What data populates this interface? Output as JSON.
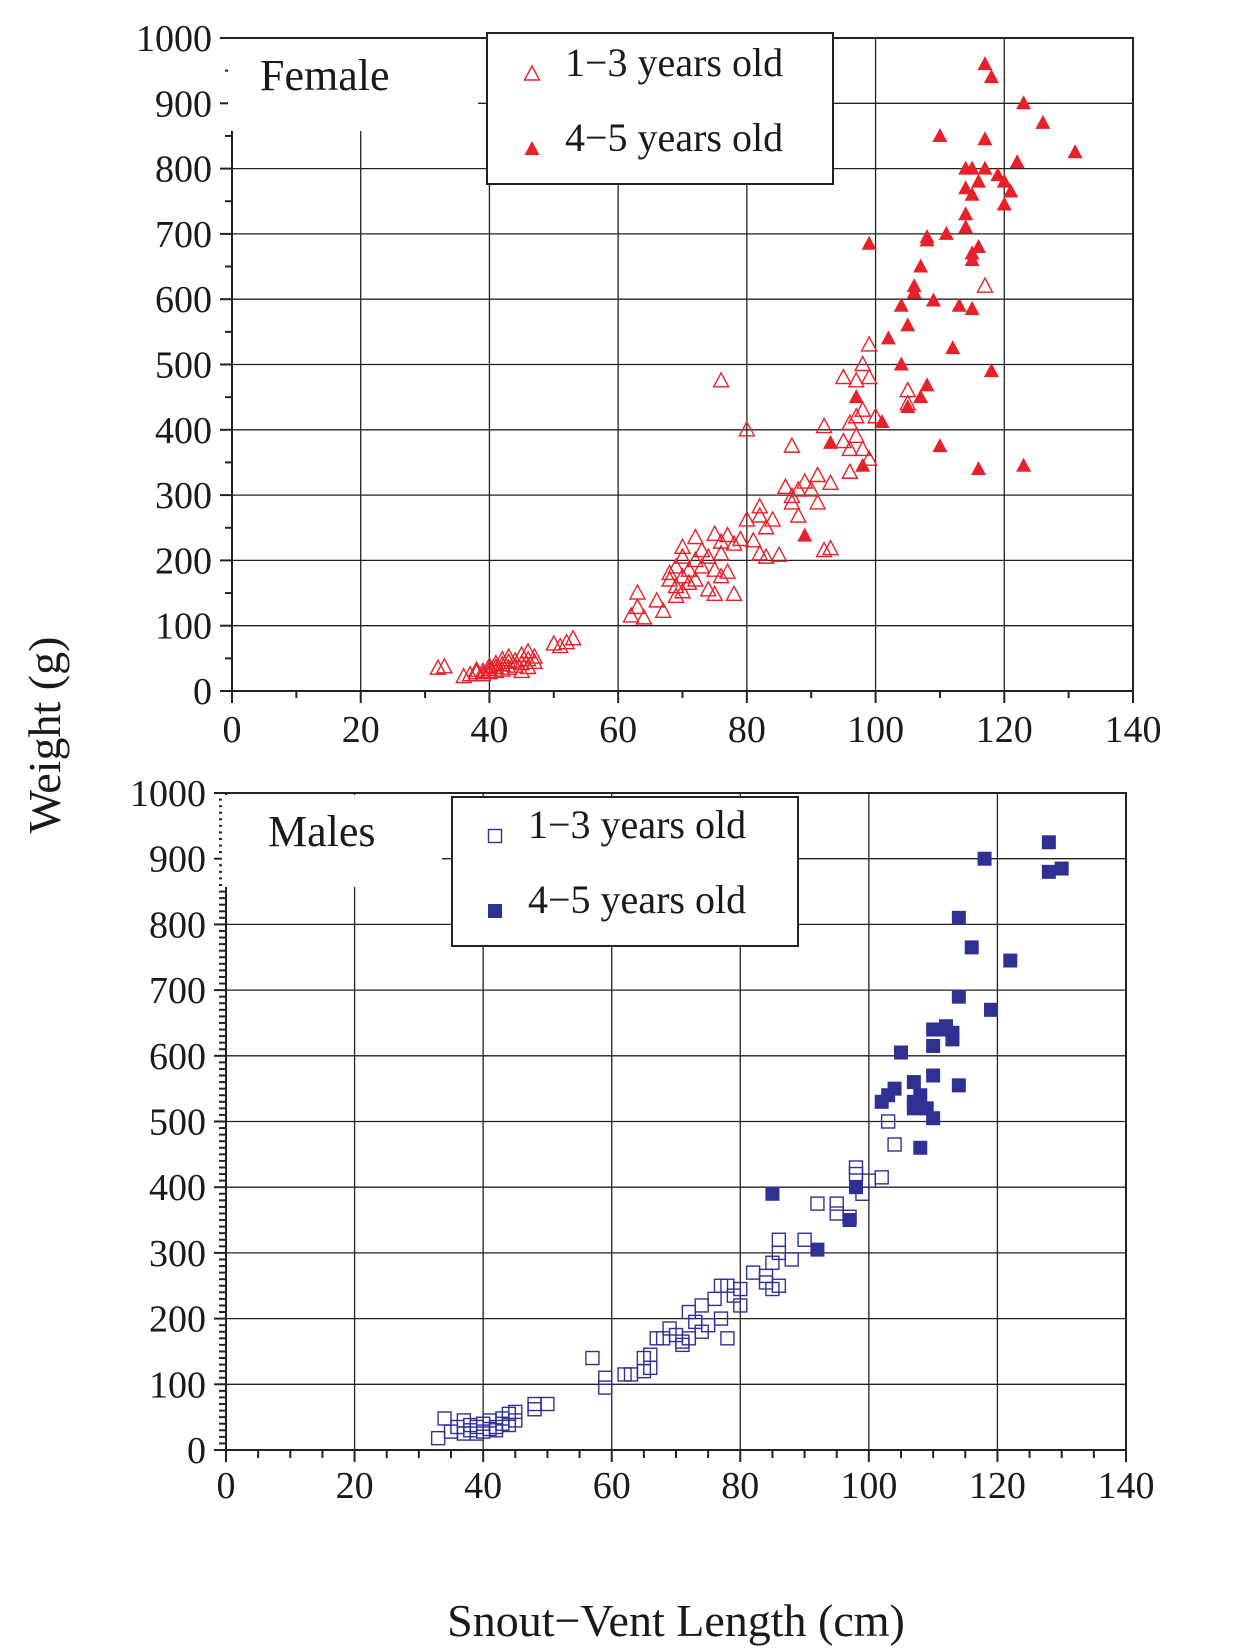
{
  "ylabel": "Weight (g)",
  "xlabel": "Snout−Vent Length (cm)",
  "chart_data": [
    {
      "type": "scatter",
      "panel_label": "Female",
      "xlim": [
        0,
        140
      ],
      "ylim": [
        0,
        1000
      ],
      "x_ticks": [
        "0",
        "20",
        "40",
        "60",
        "80",
        "100",
        "120",
        "140"
      ],
      "y_ticks": [
        "0",
        "100",
        "200",
        "300",
        "400",
        "500",
        "600",
        "700",
        "800",
        "900",
        "1000"
      ],
      "grid": true,
      "legend_position": "top-center",
      "series": [
        {
          "name": "1−3 years old",
          "marker": "open-triangle",
          "color": "#e8202a",
          "points": [
            [
              32,
              35
            ],
            [
              33,
              37
            ],
            [
              36,
              22
            ],
            [
              37,
              25
            ],
            [
              38,
              28
            ],
            [
              38,
              32
            ],
            [
              39,
              25
            ],
            [
              39,
              30
            ],
            [
              40,
              28
            ],
            [
              40,
              33
            ],
            [
              40,
              38
            ],
            [
              41,
              30
            ],
            [
              41,
              36
            ],
            [
              41,
              42
            ],
            [
              42,
              32
            ],
            [
              42,
              40
            ],
            [
              42,
              48
            ],
            [
              43,
              35
            ],
            [
              43,
              44
            ],
            [
              43,
              52
            ],
            [
              44,
              38
            ],
            [
              44,
              46
            ],
            [
              45,
              30
            ],
            [
              45,
              42
            ],
            [
              45,
              55
            ],
            [
              46,
              36
            ],
            [
              46,
              48
            ],
            [
              46,
              60
            ],
            [
              47,
              44
            ],
            [
              47,
              52
            ],
            [
              50,
              72
            ],
            [
              51,
              68
            ],
            [
              52,
              74
            ],
            [
              53,
              80
            ],
            [
              62,
              115
            ],
            [
              63,
              128
            ],
            [
              63,
              150
            ],
            [
              64,
              112
            ],
            [
              66,
              138
            ],
            [
              67,
              122
            ],
            [
              68,
              170
            ],
            [
              68,
              180
            ],
            [
              69,
              145
            ],
            [
              69,
              160
            ],
            [
              69,
              190
            ],
            [
              70,
              152
            ],
            [
              70,
              175
            ],
            [
              70,
              205
            ],
            [
              70,
              220
            ],
            [
              71,
              165
            ],
            [
              71,
              185
            ],
            [
              72,
              170
            ],
            [
              72,
              200
            ],
            [
              72,
              235
            ],
            [
              73,
              190
            ],
            [
              73,
              215
            ],
            [
              74,
              155
            ],
            [
              74,
              205
            ],
            [
              75,
              148
            ],
            [
              75,
              185
            ],
            [
              75,
              240
            ],
            [
              76,
              175
            ],
            [
              76,
              210
            ],
            [
              76,
              228
            ],
            [
              77,
              182
            ],
            [
              77,
              238
            ],
            [
              78,
              225
            ],
            [
              78,
              148
            ],
            [
              79,
              232
            ],
            [
              76,
              475
            ],
            [
              80,
              262
            ],
            [
              80,
              400
            ],
            [
              81,
              230
            ],
            [
              82,
              210
            ],
            [
              82,
              268
            ],
            [
              82,
              282
            ],
            [
              83,
              205
            ],
            [
              83,
              250
            ],
            [
              84,
              262
            ],
            [
              85,
              208
            ],
            [
              86,
              312
            ],
            [
              87,
              288
            ],
            [
              87,
              298
            ],
            [
              87,
              375
            ],
            [
              88,
              268
            ],
            [
              88,
              308
            ],
            [
              89,
              320
            ],
            [
              90,
              308
            ],
            [
              91,
              288
            ],
            [
              91,
              330
            ],
            [
              92,
              215
            ],
            [
              92,
              405
            ],
            [
              93,
              218
            ],
            [
              93,
              318
            ],
            [
              95,
              382
            ],
            [
              95,
              480
            ],
            [
              96,
              335
            ],
            [
              96,
              370
            ],
            [
              96,
              410
            ],
            [
              97,
              420
            ],
            [
              97,
              475
            ],
            [
              97,
              390
            ],
            [
              98,
              370
            ],
            [
              98,
              430
            ],
            [
              98,
              500
            ],
            [
              99,
              355
            ],
            [
              99,
              480
            ],
            [
              99,
              530
            ],
            [
              100,
              420
            ],
            [
              105,
              440
            ],
            [
              105,
              460
            ],
            [
              117,
              620
            ]
          ]
        },
        {
          "name": "4−5 years old",
          "marker": "filled-triangle",
          "color": "#e8202a",
          "points": [
            [
              89,
              238
            ],
            [
              93,
              380
            ],
            [
              97,
              450
            ],
            [
              98,
              345
            ],
            [
              99,
              685
            ],
            [
              101,
              412
            ],
            [
              102,
              540
            ],
            [
              104,
              500
            ],
            [
              104,
              590
            ],
            [
              105,
              560
            ],
            [
              105,
              435
            ],
            [
              106,
              610
            ],
            [
              106,
              620
            ],
            [
              107,
              450
            ],
            [
              107,
              650
            ],
            [
              108,
              468
            ],
            [
              108,
              690
            ],
            [
              108,
              695
            ],
            [
              109,
              598
            ],
            [
              110,
              375
            ],
            [
              110,
              850
            ],
            [
              111,
              700
            ],
            [
              112,
              525
            ],
            [
              113,
              590
            ],
            [
              114,
              710
            ],
            [
              114,
              730
            ],
            [
              114,
              770
            ],
            [
              114,
              800
            ],
            [
              115,
              585
            ],
            [
              115,
              660
            ],
            [
              115,
              670
            ],
            [
              115,
              760
            ],
            [
              115,
              800
            ],
            [
              116,
              340
            ],
            [
              116,
              680
            ],
            [
              116,
              780
            ],
            [
              117,
              800
            ],
            [
              117,
              845
            ],
            [
              117,
              960
            ],
            [
              118,
              490
            ],
            [
              118,
              940
            ],
            [
              119,
              790
            ],
            [
              120,
              780
            ],
            [
              120,
              745
            ],
            [
              121,
              765
            ],
            [
              122,
              810
            ],
            [
              123,
              345
            ],
            [
              123,
              900
            ],
            [
              126,
              870
            ],
            [
              131,
              825
            ]
          ]
        }
      ]
    },
    {
      "type": "scatter",
      "panel_label": "Males",
      "xlim": [
        0,
        140
      ],
      "ylim": [
        0,
        1000
      ],
      "x_ticks": [
        "0",
        "20",
        "40",
        "60",
        "80",
        "100",
        "120",
        "140"
      ],
      "y_ticks": [
        "0",
        "100",
        "200",
        "300",
        "400",
        "500",
        "600",
        "700",
        "800",
        "900",
        "1000"
      ],
      "grid": true,
      "legend_position": "top-center",
      "series": [
        {
          "name": "1−3 years old",
          "marker": "open-square",
          "color": "#2e3192",
          "points": [
            [
              33,
              18
            ],
            [
              34,
              48
            ],
            [
              35,
              28
            ],
            [
              36,
              35
            ],
            [
              37,
              45
            ],
            [
              37,
              25
            ],
            [
              38,
              30
            ],
            [
              38,
              38
            ],
            [
              39,
              25
            ],
            [
              39,
              35
            ],
            [
              40,
              28
            ],
            [
              40,
              40
            ],
            [
              41,
              32
            ],
            [
              41,
              45
            ],
            [
              42,
              35
            ],
            [
              42,
              30
            ],
            [
              43,
              40
            ],
            [
              43,
              48
            ],
            [
              44,
              38
            ],
            [
              44,
              55
            ],
            [
              45,
              45
            ],
            [
              45,
              58
            ],
            [
              48,
              62
            ],
            [
              48,
              70
            ],
            [
              50,
              70
            ],
            [
              57,
              140
            ],
            [
              59,
              95
            ],
            [
              59,
              110
            ],
            [
              62,
              115
            ],
            [
              63,
              115
            ],
            [
              65,
              120
            ],
            [
              65,
              140
            ],
            [
              66,
              145
            ],
            [
              66,
              125
            ],
            [
              67,
              170
            ],
            [
              68,
              170
            ],
            [
              69,
              185
            ],
            [
              70,
              175
            ],
            [
              71,
              160
            ],
            [
              71,
              165
            ],
            [
              72,
              170
            ],
            [
              72,
              210
            ],
            [
              73,
              195
            ],
            [
              74,
              220
            ],
            [
              74,
              180
            ],
            [
              75,
              190
            ],
            [
              76,
              230
            ],
            [
              77,
              200
            ],
            [
              77,
              250
            ],
            [
              78,
              170
            ],
            [
              78,
              250
            ],
            [
              79,
              235
            ],
            [
              80,
              220
            ],
            [
              80,
              245
            ],
            [
              82,
              270
            ],
            [
              84,
              255
            ],
            [
              84,
              265
            ],
            [
              85,
              245
            ],
            [
              85,
              285
            ],
            [
              86,
              300
            ],
            [
              86,
              320
            ],
            [
              86,
              250
            ],
            [
              88,
              290
            ],
            [
              90,
              320
            ],
            [
              92,
              375
            ],
            [
              95,
              375
            ],
            [
              95,
              360
            ],
            [
              97,
              355
            ],
            [
              98,
              430
            ],
            [
              98,
              420
            ],
            [
              99,
              390
            ],
            [
              100,
              410
            ],
            [
              102,
              415
            ],
            [
              103,
              500
            ],
            [
              104,
              465
            ]
          ]
        },
        {
          "name": "4−5 years old",
          "marker": "filled-square",
          "color": "#2e3192",
          "points": [
            [
              85,
              390
            ],
            [
              92,
              305
            ],
            [
              97,
              350
            ],
            [
              98,
              400
            ],
            [
              102,
              530
            ],
            [
              103,
              540
            ],
            [
              104,
              550
            ],
            [
              105,
              605
            ],
            [
              107,
              520
            ],
            [
              107,
              560
            ],
            [
              107,
              530
            ],
            [
              108,
              460
            ],
            [
              108,
              540
            ],
            [
              109,
              520
            ],
            [
              110,
              505
            ],
            [
              110,
              570
            ],
            [
              110,
              615
            ],
            [
              110,
              640
            ],
            [
              111,
              640
            ],
            [
              112,
              645
            ],
            [
              113,
              625
            ],
            [
              113,
              635
            ],
            [
              114,
              555
            ],
            [
              114,
              690
            ],
            [
              114,
              810
            ],
            [
              116,
              765
            ],
            [
              118,
              900
            ],
            [
              119,
              670
            ],
            [
              122,
              745
            ],
            [
              128,
              880
            ],
            [
              128,
              925
            ],
            [
              130,
              885
            ]
          ]
        }
      ]
    }
  ]
}
